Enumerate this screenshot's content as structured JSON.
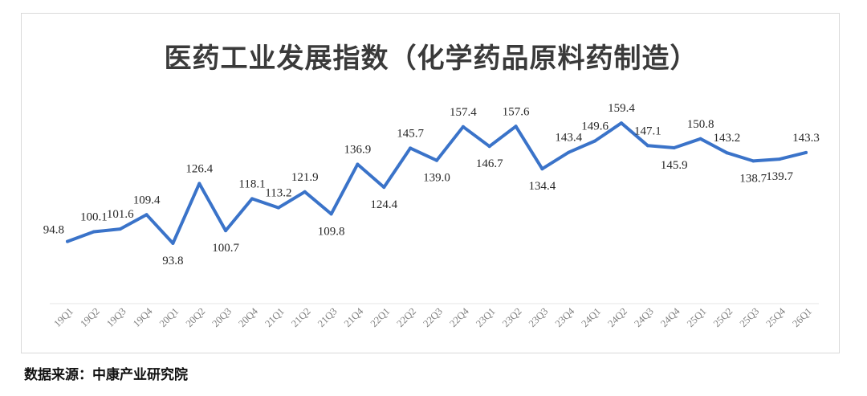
{
  "chart_data": {
    "type": "line",
    "title": "医药工业发展指数（化学药品原料药制造）",
    "xlabel": "",
    "ylabel": "",
    "ylim": [
      60,
      170
    ],
    "grid": false,
    "legend": "none",
    "color": "#3a73c9",
    "categories": [
      "19Q1",
      "19Q2",
      "19Q3",
      "19Q4",
      "20Q1",
      "20Q2",
      "20Q3",
      "20Q4",
      "21Q1",
      "21Q2",
      "21Q3",
      "21Q4",
      "22Q1",
      "22Q2",
      "22Q3",
      "22Q4",
      "23Q1",
      "23Q2",
      "23Q3",
      "23Q4",
      "24Q1",
      "24Q2",
      "24Q3",
      "24Q4",
      "25Q1",
      "25Q2",
      "25Q3",
      "25Q4",
      "26Q1"
    ],
    "values": [
      94.8,
      100.1,
      101.6,
      109.4,
      93.8,
      126.4,
      100.7,
      118.1,
      113.2,
      121.9,
      109.8,
      136.9,
      124.4,
      145.7,
      139.0,
      157.4,
      146.7,
      157.6,
      134.4,
      143.4,
      149.6,
      159.4,
      147.1,
      145.9,
      150.8,
      143.2,
      138.7,
      139.7,
      143.3
    ],
    "data_labels": [
      "94.8",
      "100.1",
      "101.6",
      "109.4",
      "93.8",
      "126.4",
      "100.7",
      "118.1",
      "113.2",
      "121.9",
      "109.8",
      "136.9",
      "124.4",
      "145.7",
      "139.0",
      "157.4",
      "146.7",
      "157.6",
      "134.4",
      "143.4",
      "149.6",
      "159.4",
      "147.1",
      "145.9",
      "150.8",
      "143.2",
      "138.7",
      "139.7",
      "143.3"
    ],
    "label_position": [
      "left",
      "above",
      "above",
      "above",
      "below",
      "above",
      "below",
      "above",
      "above",
      "above",
      "below",
      "above",
      "below",
      "above",
      "below",
      "above",
      "below",
      "above",
      "below",
      "above",
      "above",
      "above",
      "above",
      "below",
      "above",
      "above",
      "below",
      "below",
      "above"
    ]
  },
  "source": "数据来源：中康产业研究院"
}
